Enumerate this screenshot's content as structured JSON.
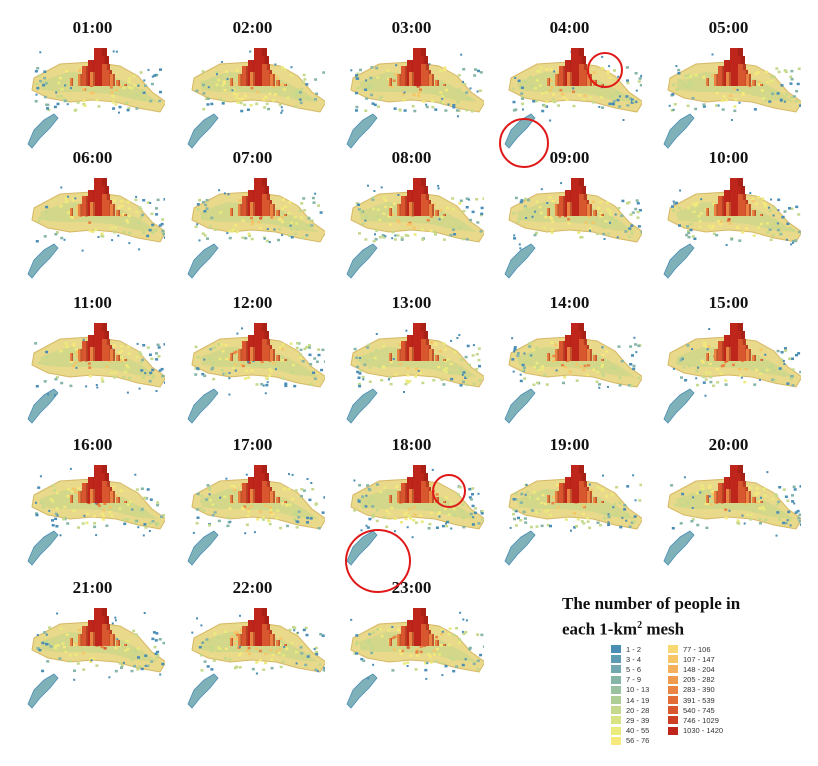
{
  "panels": [
    {
      "time": "01:00"
    },
    {
      "time": "02:00"
    },
    {
      "time": "03:00"
    },
    {
      "time": "04:00"
    },
    {
      "time": "05:00"
    },
    {
      "time": "06:00"
    },
    {
      "time": "07:00"
    },
    {
      "time": "08:00"
    },
    {
      "time": "09:00"
    },
    {
      "time": "10:00"
    },
    {
      "time": "11:00"
    },
    {
      "time": "12:00"
    },
    {
      "time": "13:00"
    },
    {
      "time": "14:00"
    },
    {
      "time": "15:00"
    },
    {
      "time": "16:00"
    },
    {
      "time": "17:00"
    },
    {
      "time": "18:00"
    },
    {
      "time": "19:00"
    },
    {
      "time": "20:00"
    },
    {
      "time": "21:00"
    },
    {
      "time": "22:00"
    },
    {
      "time": "23:00"
    }
  ],
  "legend": {
    "title_line1": "The number of people in",
    "title_line2_prefix": "each 1-km",
    "title_sup": "2",
    "title_line2_suffix": " mesh",
    "items": [
      {
        "label": "1 - 2",
        "color": "#4a8db5"
      },
      {
        "label": "3 - 4",
        "color": "#5e9bb3"
      },
      {
        "label": "5 - 6",
        "color": "#72a8b0"
      },
      {
        "label": "7 - 9",
        "color": "#86b5a8"
      },
      {
        "label": "10 - 13",
        "color": "#9bc29f"
      },
      {
        "label": "14 - 19",
        "color": "#afce96"
      },
      {
        "label": "20 - 28",
        "color": "#c4d98c"
      },
      {
        "label": "29 - 39",
        "color": "#d8e383"
      },
      {
        "label": "40 - 55",
        "color": "#eaeb7c"
      },
      {
        "label": "56 - 76",
        "color": "#f6e97b"
      },
      {
        "label": "77 - 106",
        "color": "#f7d872"
      },
      {
        "label": "107 - 147",
        "color": "#f6c566"
      },
      {
        "label": "148 - 204",
        "color": "#f4b05a"
      },
      {
        "label": "205 - 282",
        "color": "#f09a4e"
      },
      {
        "label": "283 - 390",
        "color": "#ea8443"
      },
      {
        "label": "391 - 539",
        "color": "#e26d38"
      },
      {
        "label": "540 - 745",
        "color": "#d8572e"
      },
      {
        "label": "746 - 1029",
        "color": "#cc3f24"
      },
      {
        "label": "1030 - 1420",
        "color": "#bf261b"
      }
    ]
  }
}
